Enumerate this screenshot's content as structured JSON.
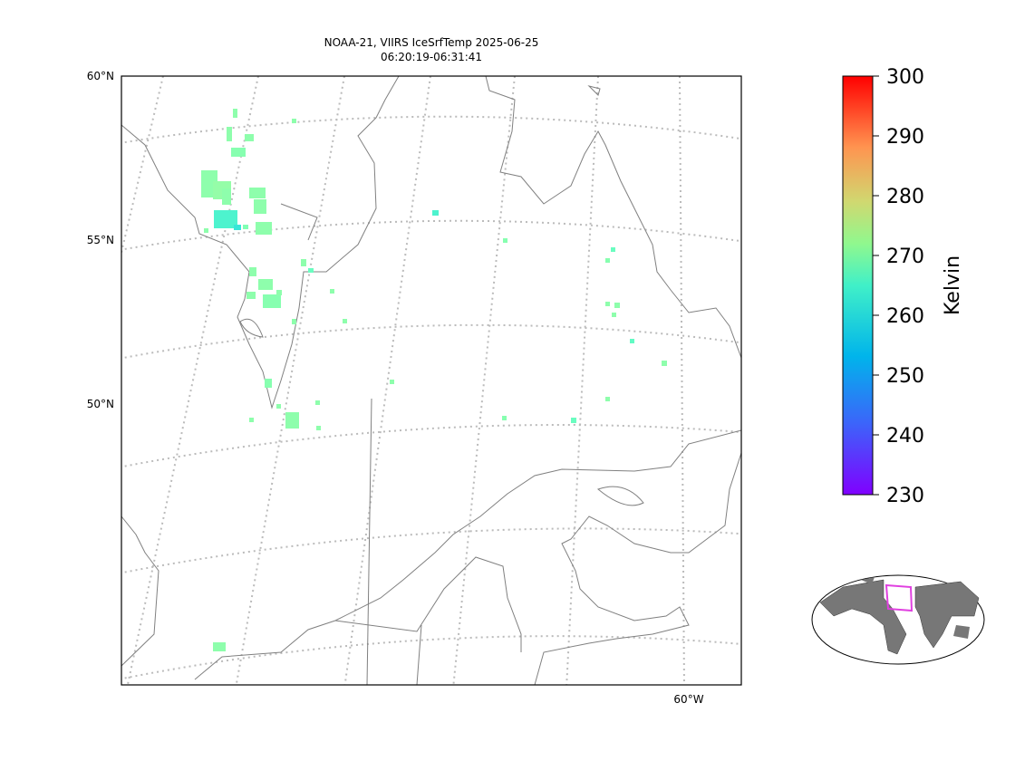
{
  "header": {
    "title": "NOAA-21, VIIRS IceSrfTemp 2025-06-25",
    "subtitle": "06:20:19-06:31:41"
  },
  "map": {
    "lat_labels": [
      "60°N",
      "55°N",
      "50°N"
    ],
    "lon_labels": [
      "60°W"
    ]
  },
  "colorbar": {
    "label": "Kelvin",
    "lim": [
      230,
      300
    ],
    "ticks": [
      230,
      240,
      250,
      260,
      270,
      280,
      290,
      300
    ]
  },
  "pixels": [
    267,
    267,
    267,
    267,
    266,
    267,
    268,
    267,
    265,
    267,
    267,
    267,
    258,
    255,
    267,
    267,
    267,
    267,
    267,
    266,
    262,
    267,
    267,
    267,
    267,
    266,
    267,
    267,
    267,
    258,
    266,
    267,
    267,
    267,
    266,
    262,
    266,
    262,
    267,
    267,
    267,
    267,
    267,
    267,
    261
  ]
}
